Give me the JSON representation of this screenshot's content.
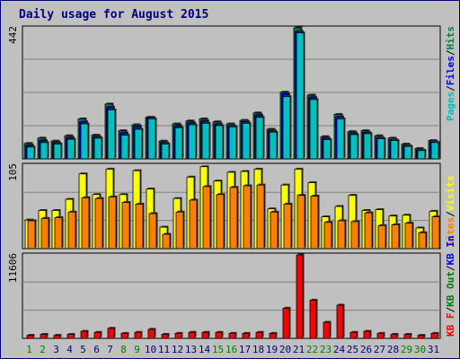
{
  "title": "Daily usage for August 2015",
  "colors": {
    "background": "#c0c0c0",
    "title": "#000080",
    "pages": "#00c0c0",
    "files": "#0000ff",
    "hits": "#008040",
    "visits": "#ffff00",
    "sites": "#ff8000",
    "kb_in": "#0000ff",
    "kb_out": "#008000",
    "kb_f": "#ff0000",
    "weekday_label": "#000080",
    "weekend_label": "#008000"
  },
  "weekend_days": [
    1,
    2,
    8,
    9,
    15,
    16,
    22,
    23,
    29,
    30
  ],
  "chart_data": [
    {
      "type": "bar",
      "panel": "hits-files-pages",
      "ymax_label": "442",
      "ylim": [
        0,
        442
      ],
      "legend": {
        "pages": "Pages",
        "sep1": "/",
        "files": "Files",
        "sep2": "/",
        "hits": "Hits"
      },
      "categories": [
        "1",
        "2",
        "3",
        "4",
        "5",
        "6",
        "7",
        "8",
        "9",
        "10",
        "11",
        "12",
        "13",
        "14",
        "15",
        "16",
        "17",
        "18",
        "19",
        "20",
        "21",
        "22",
        "23",
        "24",
        "25",
        "26",
        "27",
        "28",
        "29",
        "30",
        "31"
      ],
      "series": [
        {
          "name": "Hits",
          "values": [
            52,
            70,
            60,
            78,
            135,
            80,
            185,
            95,
            115,
            140,
            60,
            118,
            128,
            135,
            125,
            118,
            130,
            155,
            100,
            225,
            442,
            215,
            75,
            150,
            92,
            95,
            78,
            70,
            50,
            35,
            62
          ]
        },
        {
          "name": "Files",
          "values": [
            46,
            62,
            55,
            72,
            125,
            75,
            175,
            88,
            110,
            140,
            55,
            112,
            122,
            128,
            118,
            112,
            126,
            148,
            95,
            220,
            430,
            208,
            70,
            142,
            88,
            90,
            72,
            65,
            45,
            30,
            58
          ]
        },
        {
          "name": "Pages",
          "values": [
            40,
            55,
            50,
            66,
            118,
            70,
            165,
            80,
            100,
            135,
            50,
            105,
            115,
            120,
            112,
            108,
            120,
            140,
            90,
            210,
            425,
            200,
            65,
            135,
            82,
            85,
            68,
            62,
            42,
            28,
            55
          ]
        }
      ]
    },
    {
      "type": "bar",
      "panel": "visits-sites",
      "ymax_label": "105",
      "ylim": [
        0,
        105
      ],
      "legend": {
        "sites": "Sites",
        "sep1": "/",
        "visits": "Visits"
      },
      "categories": [
        "1",
        "2",
        "3",
        "4",
        "5",
        "6",
        "7",
        "8",
        "9",
        "10",
        "11",
        "12",
        "13",
        "14",
        "15",
        "16",
        "17",
        "18",
        "19",
        "20",
        "21",
        "22",
        "23",
        "24",
        "25",
        "26",
        "27",
        "28",
        "29",
        "30",
        "31"
      ],
      "series": [
        {
          "name": "Visits",
          "values": [
            36,
            48,
            48,
            62,
            94,
            68,
            100,
            68,
            98,
            75,
            27,
            63,
            90,
            103,
            85,
            96,
            97,
            100,
            50,
            80,
            100,
            83,
            40,
            53,
            67,
            48,
            49,
            41,
            42,
            26,
            47
          ]
        },
        {
          "name": "Sites",
          "values": [
            35,
            38,
            39,
            46,
            64,
            63,
            65,
            58,
            56,
            44,
            18,
            46,
            61,
            78,
            68,
            77,
            79,
            80,
            46,
            56,
            67,
            66,
            33,
            35,
            34,
            45,
            29,
            30,
            32,
            20,
            40
          ]
        }
      ]
    },
    {
      "type": "bar",
      "panel": "kbf-kbout-kbin",
      "ymax_label": "11606",
      "ylim": [
        0,
        11606
      ],
      "legend": {
        "kbf": "KB F",
        "sep1": "/",
        "kbout": "KB Out",
        "sep2": "/",
        "kbin": "KB In"
      },
      "categories": [
        "1",
        "2",
        "3",
        "4",
        "5",
        "6",
        "7",
        "8",
        "9",
        "10",
        "11",
        "12",
        "13",
        "14",
        "15",
        "16",
        "17",
        "18",
        "19",
        "20",
        "21",
        "22",
        "23",
        "24",
        "25",
        "26",
        "27",
        "28",
        "29",
        "30",
        "31"
      ],
      "series": [
        {
          "name": "KB F",
          "values": [
            420,
            560,
            420,
            560,
            980,
            840,
            1400,
            700,
            840,
            1260,
            560,
            700,
            840,
            840,
            840,
            700,
            700,
            840,
            700,
            4200,
            11606,
            5320,
            2240,
            4620,
            840,
            980,
            700,
            560,
            560,
            420,
            700
          ]
        }
      ]
    }
  ]
}
